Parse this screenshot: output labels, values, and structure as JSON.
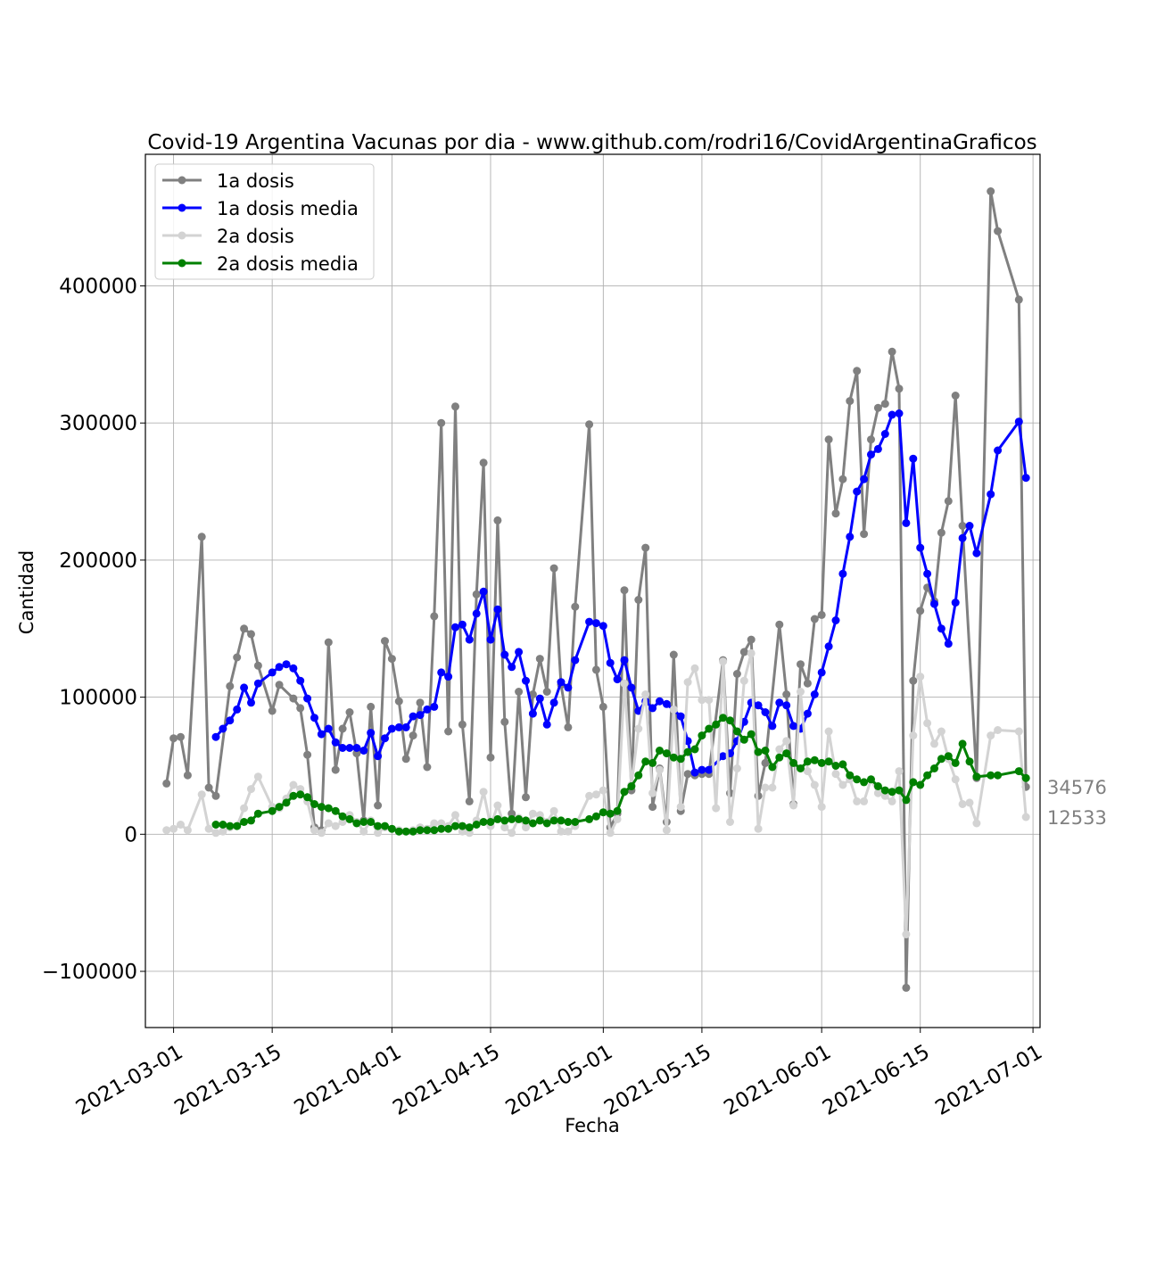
{
  "chart_data": {
    "type": "line",
    "title": "Covid-19 Argentina Vacunas por dia - www.github.com/rodri16/CovidArgentinaGraficos",
    "xlabel": "Fecha",
    "ylabel": "Cantidad",
    "x_start": "2021-02-28",
    "xlim": [
      "2021-02-25",
      "2021-07-02"
    ],
    "ylim": [
      -141000,
      496000
    ],
    "x_ticks": [
      "2021-03-01",
      "2021-03-15",
      "2021-04-01",
      "2021-04-15",
      "2021-05-01",
      "2021-05-15",
      "2021-06-01",
      "2021-06-15",
      "2021-07-01"
    ],
    "y_ticks": [
      -100000,
      0,
      100000,
      200000,
      300000,
      400000
    ],
    "y_tick_labels": [
      "−100000",
      "0",
      "100000",
      "200000",
      "300000",
      "400000"
    ],
    "grid": true,
    "legend_position": "top-left",
    "side_annotations": [
      {
        "text": "34576",
        "value": 34576
      },
      {
        "text": "12533",
        "value": 12533
      }
    ],
    "series": [
      {
        "name": "1a dosis",
        "color": "#808080",
        "values": [
          37000,
          70000,
          71000,
          43000,
          null,
          217000,
          34000,
          28000,
          null,
          108000,
          129000,
          150000,
          146000,
          123000,
          null,
          90000,
          109000,
          null,
          99000,
          92000,
          58000,
          5000,
          3000,
          140000,
          47000,
          77000,
          89000,
          59000,
          10000,
          93000,
          21000,
          141000,
          128000,
          97000,
          55000,
          72000,
          96000,
          49000,
          159000,
          300000,
          75000,
          312000,
          80000,
          24000,
          175000,
          271000,
          56000,
          229000,
          82000,
          15000,
          104000,
          27000,
          102000,
          128000,
          104000,
          194000,
          109000,
          78000,
          166000,
          null,
          299000,
          120000,
          93000,
          5000,
          15000,
          178000,
          32000,
          171000,
          209000,
          20000,
          48000,
          9000,
          131000,
          17000,
          44000,
          43000,
          44000,
          44000,
          null,
          127000,
          30000,
          117000,
          133000,
          142000,
          28000,
          52000,
          null,
          153000,
          102000,
          22000,
          124000,
          110000,
          157000,
          160000,
          288000,
          234000,
          259000,
          316000,
          338000,
          219000,
          288000,
          311000,
          314000,
          352000,
          325000,
          -112000,
          112000,
          163000,
          180000,
          170000,
          220000,
          243000,
          320000,
          225000,
          null,
          41000,
          null,
          469000,
          440000,
          null,
          null,
          390000,
          34576
        ]
      },
      {
        "name": "1a dosis media",
        "color": "#0000ff",
        "values": [
          null,
          null,
          null,
          null,
          null,
          null,
          null,
          71000,
          77000,
          83000,
          91000,
          107000,
          96000,
          110000,
          null,
          118000,
          122000,
          124000,
          121000,
          112000,
          99000,
          85000,
          73000,
          77000,
          67000,
          63000,
          63000,
          63000,
          61000,
          74000,
          57000,
          70000,
          77000,
          78000,
          78000,
          86000,
          87000,
          91000,
          93000,
          118000,
          115000,
          151000,
          153000,
          142000,
          161000,
          177000,
          142000,
          164000,
          131000,
          122000,
          133000,
          112000,
          88000,
          99000,
          80000,
          96000,
          111000,
          107000,
          127000,
          null,
          155000,
          154000,
          152000,
          125000,
          113000,
          127000,
          107000,
          90000,
          97000,
          92000,
          97000,
          95000,
          null,
          86000,
          68000,
          45000,
          47000,
          47000,
          null,
          57000,
          59000,
          68000,
          82000,
          96000,
          94000,
          89000,
          79000,
          96000,
          94000,
          79000,
          77000,
          88000,
          102000,
          118000,
          137000,
          156000,
          190000,
          217000,
          250000,
          259000,
          277000,
          281000,
          292000,
          306000,
          307000,
          227000,
          274000,
          209000,
          190000,
          168000,
          150000,
          139000,
          169000,
          216000,
          225000,
          205000,
          null,
          248000,
          280000,
          null,
          null,
          301000,
          260000
        ]
      },
      {
        "name": "2a dosis",
        "color": "#d3d3d3",
        "values": [
          3000,
          4000,
          7000,
          3000,
          null,
          29000,
          4000,
          1000,
          2000,
          5000,
          6000,
          19000,
          33000,
          42000,
          null,
          20000,
          19000,
          26000,
          36000,
          33000,
          24000,
          3000,
          1000,
          8000,
          6000,
          9000,
          14000,
          9000,
          2000,
          10000,
          1000,
          5000,
          4000,
          3000,
          2000,
          3000,
          5000,
          4000,
          8000,
          8000,
          6000,
          14000,
          2000,
          1000,
          10000,
          31000,
          6000,
          21000,
          5000,
          1000,
          12000,
          5000,
          15000,
          14000,
          9000,
          17000,
          2000,
          2000,
          6000,
          null,
          28000,
          29000,
          32000,
          1000,
          11000,
          110000,
          36000,
          77000,
          102000,
          30000,
          47000,
          3000,
          91000,
          20000,
          111000,
          121000,
          98000,
          98000,
          19000,
          126000,
          9000,
          48000,
          112000,
          132000,
          4000,
          34000,
          34000,
          62000,
          68000,
          21000,
          104000,
          46000,
          36000,
          20000,
          75000,
          44000,
          36000,
          40000,
          24000,
          24000,
          40000,
          30000,
          28000,
          24000,
          46000,
          -73000,
          72000,
          115000,
          81000,
          66000,
          75000,
          55000,
          40000,
          22000,
          23000,
          8000,
          null,
          72000,
          76000,
          null,
          null,
          75000,
          12533
        ]
      },
      {
        "name": "2a dosis media",
        "color": "#008000",
        "values": [
          null,
          null,
          null,
          null,
          null,
          null,
          null,
          7000,
          7000,
          6000,
          6000,
          9000,
          10000,
          15000,
          null,
          17000,
          20000,
          23000,
          28000,
          29000,
          27000,
          22000,
          20000,
          19000,
          17000,
          13000,
          11000,
          8000,
          9000,
          9000,
          6000,
          6000,
          4000,
          2000,
          2000,
          2000,
          3000,
          3000,
          3000,
          4000,
          4000,
          6000,
          6000,
          5000,
          7000,
          9000,
          9000,
          11000,
          10000,
          11000,
          11000,
          10000,
          8000,
          10000,
          8000,
          10000,
          10000,
          9000,
          9000,
          null,
          11000,
          13000,
          16000,
          15000,
          17000,
          31000,
          35000,
          43000,
          53000,
          52000,
          61000,
          59000,
          56000,
          55000,
          60000,
          62000,
          72000,
          77000,
          80000,
          85000,
          83000,
          75000,
          69000,
          73000,
          60000,
          61000,
          49000,
          56000,
          59000,
          52000,
          48000,
          53000,
          54000,
          52000,
          53000,
          50000,
          51000,
          43000,
          40000,
          38000,
          40000,
          35000,
          32000,
          31000,
          32000,
          25000,
          38000,
          36000,
          43000,
          48000,
          55000,
          57000,
          52000,
          66000,
          53000,
          42000,
          null,
          43000,
          43000,
          null,
          null,
          46000,
          41000
        ]
      }
    ]
  }
}
